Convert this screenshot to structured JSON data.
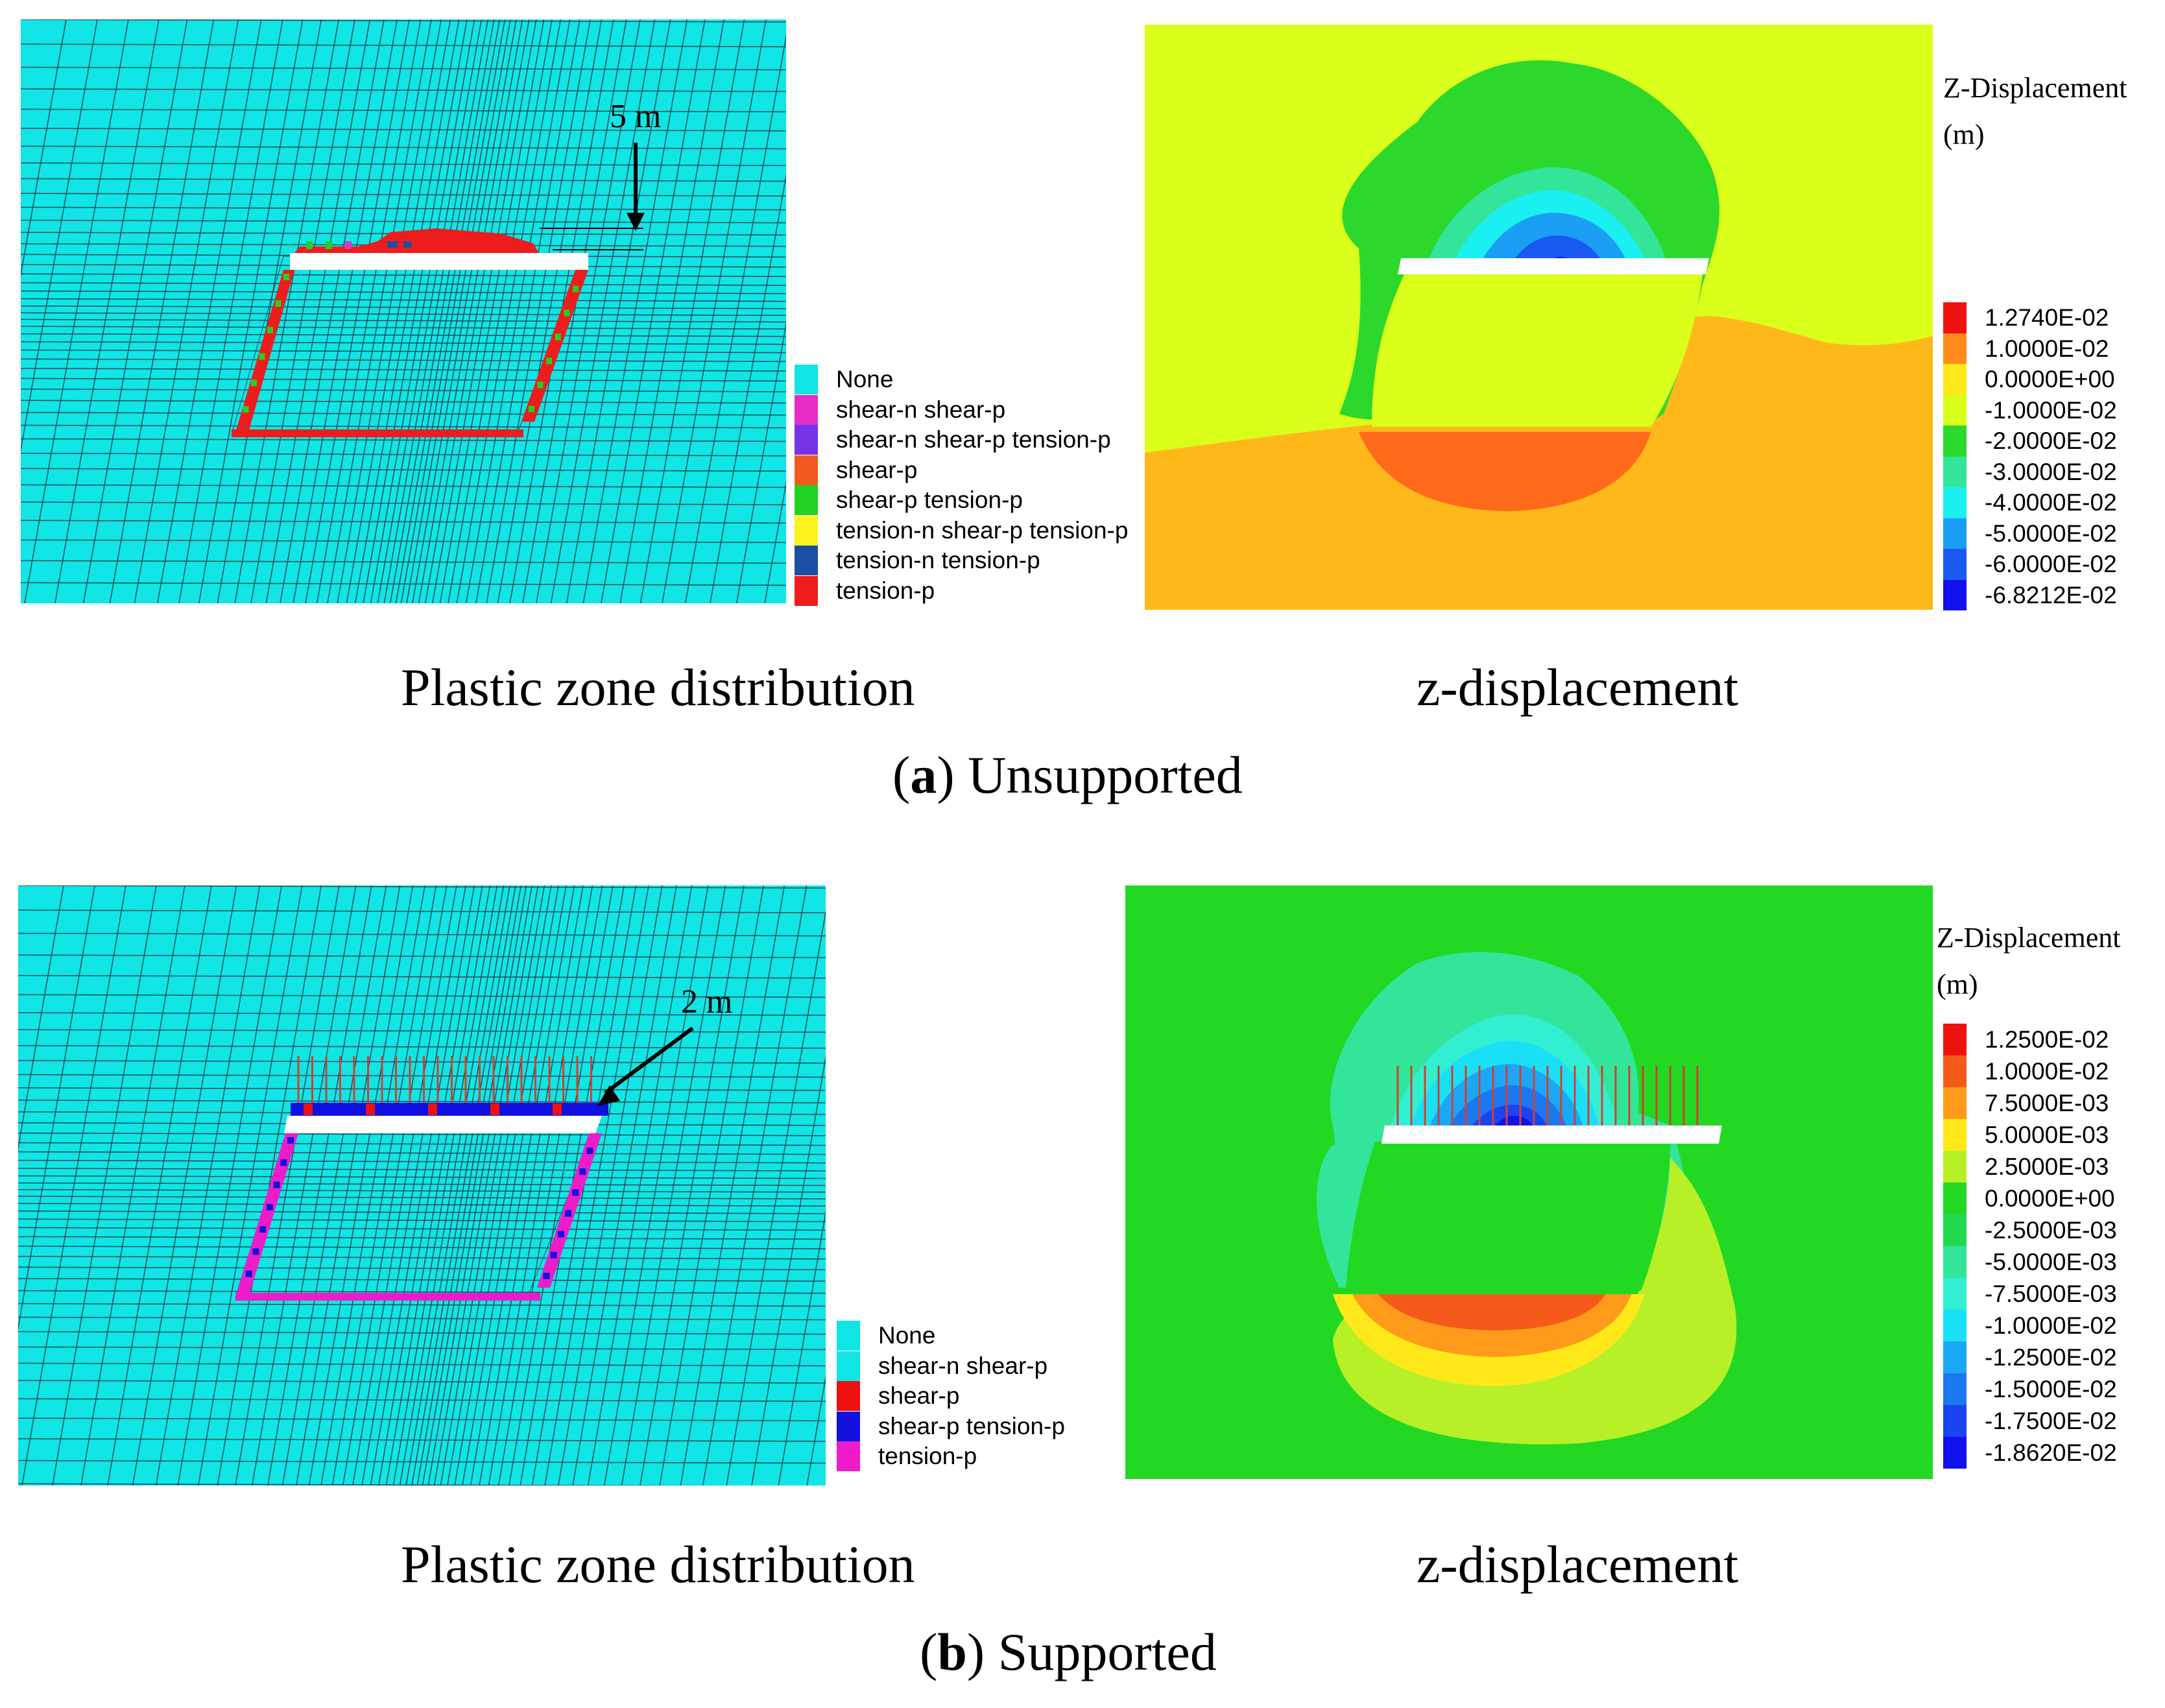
{
  "panel_a": {
    "annotation": "5 m",
    "legend": [
      {
        "label": "None",
        "color": "#11E5E5"
      },
      {
        "label": "shear-n shear-p",
        "color": "#E62DC8"
      },
      {
        "label": "shear-n shear-p tension-p",
        "color": "#7733E8"
      },
      {
        "label": "shear-p",
        "color": "#F05A1E"
      },
      {
        "label": "shear-p tension-p",
        "color": "#22D222"
      },
      {
        "label": "tension-n shear-p tension-p",
        "color": "#FFF21E"
      },
      {
        "label": "tension-n tension-p",
        "color": "#1B4FA6"
      },
      {
        "label": "tension-p",
        "color": "#EE1C1C"
      }
    ],
    "colorbar": {
      "title_line1": "Z-Displacement",
      "title_line2": "(m)",
      "values": [
        "1.2740E-02",
        "1.0000E-02",
        "0.0000E+00",
        "-1.0000E-02",
        "-2.0000E-02",
        "-3.0000E-02",
        "-4.0000E-02",
        "-5.0000E-02",
        "-6.0000E-02",
        "-6.8212E-02"
      ],
      "colors": [
        "#EE1111",
        "#FF8C1A",
        "#FFE81A",
        "#D9FF1A",
        "#2CD82C",
        "#33E59A",
        "#1AF0F0",
        "#1A9FF5",
        "#1A5AF0",
        "#1111EE"
      ]
    },
    "caption_left": "Plastic zone distribution",
    "caption_right": "z-displacement",
    "sub_letter": "a",
    "sub_text": ") Unsupported",
    "sub_open": "("
  },
  "panel_b": {
    "annotation": "2 m",
    "legend": [
      {
        "label": "None",
        "color": "#11E5E5"
      },
      {
        "label": "shear-n shear-p",
        "color": "#11E5E5"
      },
      {
        "label": "shear-p",
        "color": "#EE1111"
      },
      {
        "label": "shear-p tension-p",
        "color": "#1111DD"
      },
      {
        "label": "tension-p",
        "color": "#EE1CC8"
      }
    ],
    "colorbar": {
      "title_line1": "Z-Displacement",
      "title_line2": "(m)",
      "values": [
        "1.2500E-02",
        "1.0000E-02",
        "7.5000E-03",
        "5.0000E-03",
        "2.5000E-03",
        "0.0000E+00",
        "-2.5000E-03",
        "-5.0000E-03",
        "-7.5000E-03",
        "-1.0000E-02",
        "-1.2500E-02",
        "-1.5000E-02",
        "-1.7500E-02",
        "-1.8620E-02"
      ],
      "colors": [
        "#EE1111",
        "#F55A1A",
        "#FF9A1A",
        "#FFE81A",
        "#B8F028",
        "#22D822",
        "#22D850",
        "#33E59A",
        "#33EFD2",
        "#1AE0F5",
        "#1AA8F5",
        "#1A78F0",
        "#1A44F0",
        "#1111EE"
      ]
    },
    "caption_left": "Plastic zone distribution",
    "caption_right": "z-displacement",
    "sub_letter": "b",
    "sub_text": ") Supported",
    "sub_open": "("
  }
}
